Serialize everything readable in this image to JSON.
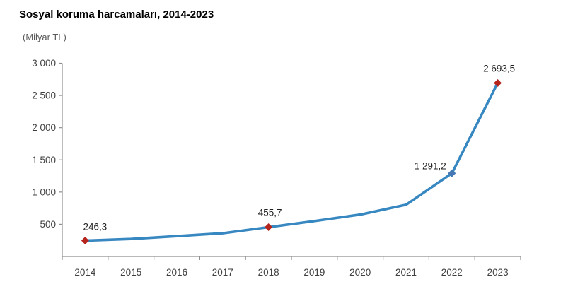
{
  "header": {
    "title": "Sosyal koruma harcamaları, 2014-2023",
    "unit_label": "(Milyar TL)"
  },
  "chart_data": {
    "type": "line",
    "title": "Sosyal koruma harcamaları, 2014-2023",
    "unit": "Milyar TL",
    "categories": [
      "2014",
      "2015",
      "2016",
      "2017",
      "2018",
      "2019",
      "2020",
      "2021",
      "2022",
      "2023"
    ],
    "values": [
      246.3,
      272,
      316,
      361,
      455.7,
      550,
      651,
      803,
      1291.2,
      2693.5
    ],
    "labeled_points": [
      {
        "year": "2014",
        "label": "246,3",
        "value": 246.3,
        "marker_color": "#b5251d",
        "label_position": "above-right"
      },
      {
        "year": "2018",
        "label": "455,7",
        "value": 455.7,
        "marker_color": "#b5251d",
        "label_position": "above"
      },
      {
        "year": "2022",
        "label": "1 291,2",
        "value": 1291.2,
        "marker_color": "#4679b4",
        "label_position": "left-above"
      },
      {
        "year": "2023",
        "label": "2 693,5",
        "value": 2693.5,
        "marker_color": "#b5251d",
        "label_position": "above"
      }
    ],
    "y_ticks": [
      {
        "value": 500,
        "label": "500"
      },
      {
        "value": 1000,
        "label": "1 000"
      },
      {
        "value": 1500,
        "label": "1 500"
      },
      {
        "value": 2000,
        "label": "2 000"
      },
      {
        "value": 2500,
        "label": "2 500"
      },
      {
        "value": 3000,
        "label": "3 000"
      }
    ],
    "ylim": [
      0,
      3000
    ],
    "xlabel": "",
    "ylabel": "",
    "grid": false,
    "legend": false,
    "line_color": "#3787c1",
    "axis_color": "#8f8f8f",
    "tick_label_color": "#404040",
    "data_label_color": "#1f1f1f"
  }
}
